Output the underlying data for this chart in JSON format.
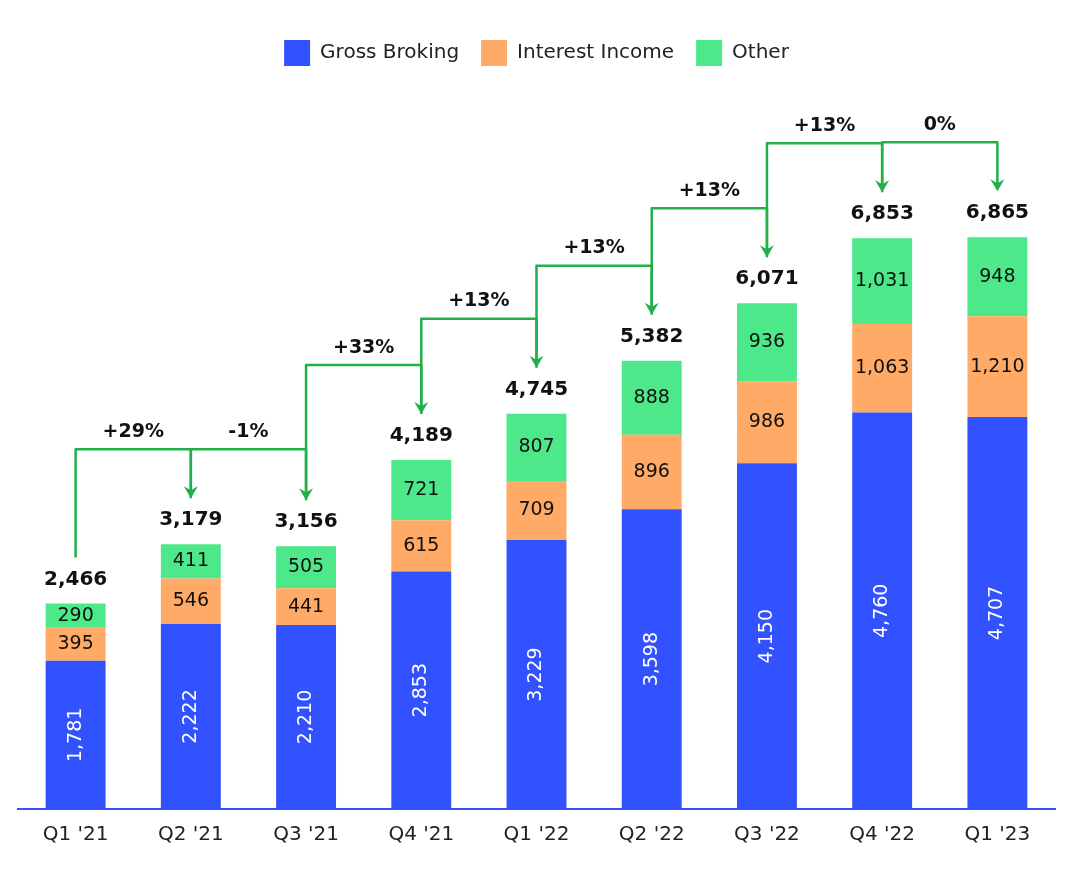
{
  "chart_data": {
    "type": "bar",
    "stacked": true,
    "categories": [
      "Q1 '21",
      "Q2 '21",
      "Q3 '21",
      "Q4 '21",
      "Q1 '22",
      "Q2 '22",
      "Q3 '22",
      "Q4 '22",
      "Q1 '23"
    ],
    "series": [
      {
        "name": "Gross Broking",
        "color": "#3352ff",
        "values": [
          1781,
          2222,
          2210,
          2853,
          3229,
          3598,
          4150,
          4760,
          4707
        ],
        "value_labels": [
          "1,781",
          "2,222",
          "2,210",
          "2,853",
          "3,229",
          "3,598",
          "4,150",
          "4,760",
          "4,707"
        ]
      },
      {
        "name": "Interest Income",
        "color": "#ffaa66",
        "values": [
          395,
          546,
          441,
          615,
          709,
          896,
          986,
          1063,
          1210
        ],
        "value_labels": [
          "395",
          "546",
          "441",
          "615",
          "709",
          "896",
          "986",
          "1,063",
          "1,210"
        ]
      },
      {
        "name": "Other",
        "color": "#4de88a",
        "values": [
          290,
          411,
          505,
          721,
          807,
          888,
          936,
          1031,
          948
        ],
        "value_labels": [
          "290",
          "411",
          "505",
          "721",
          "807",
          "888",
          "936",
          "1,031",
          "948"
        ]
      }
    ],
    "totals": [
      "2,466",
      "3,179",
      "3,156",
      "4,189",
      "4,745",
      "5,382",
      "6,071",
      "6,853",
      "6,865"
    ],
    "annotations": [
      "+29%",
      "-1%",
      "+33%",
      "+13%",
      "+13%",
      "+13%",
      "+13%",
      "0%"
    ],
    "tick_labels": "x",
    "grid": false,
    "legend": "top"
  }
}
